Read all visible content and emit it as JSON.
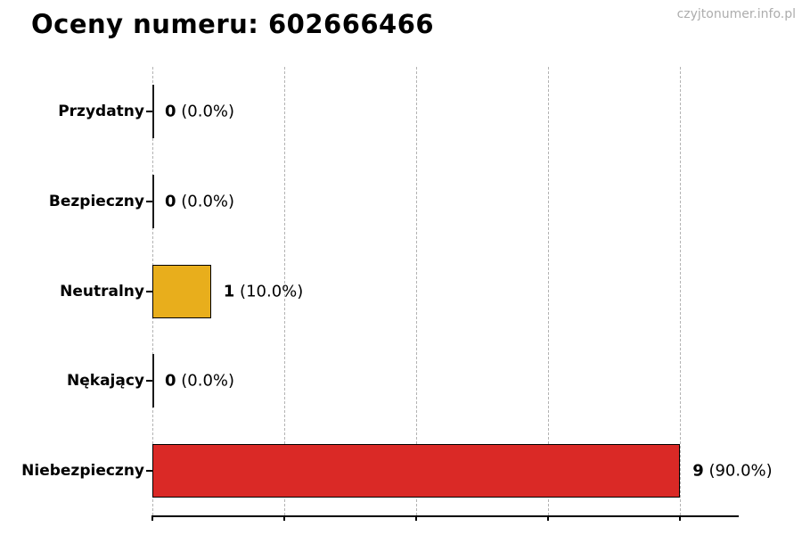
{
  "page": {
    "title": "Oceny numeru: 602666466",
    "watermark": "czyjtonumer.info.pl"
  },
  "chart_data": {
    "type": "bar",
    "orientation": "horizontal",
    "title": "Oceny numeru: 602666466",
    "categories": [
      "Przydatny",
      "Bezpieczny",
      "Neutralny",
      "Nękający",
      "Niebezpieczny"
    ],
    "values": [
      0,
      0,
      1,
      0,
      9
    ],
    "value_labels": [
      {
        "num": "0",
        "pct": "(0.0%)"
      },
      {
        "num": "0",
        "pct": "(0.0%)"
      },
      {
        "num": "1",
        "pct": "(10.0%)"
      },
      {
        "num": "0",
        "pct": "(0.0%)"
      },
      {
        "num": "9",
        "pct": "(90.0%)"
      }
    ],
    "bar_colors": [
      "#1a1a1a",
      "#1a1a1a",
      "#e8ae1c",
      "#1a1a1a",
      "#da2926"
    ],
    "bar_border_color": "#000000",
    "xlim": [
      0,
      10
    ],
    "gridline_values": [
      0,
      2.25,
      4.5,
      6.75,
      9
    ],
    "grid": "vertical-dashed",
    "legend": "none",
    "x_tick_labels": [],
    "colors": {
      "neutral_bar": "#e8ae1c",
      "dangerous_bar": "#da2926",
      "gridline": "#b3b3b3",
      "watermark_text": "#adadad",
      "text": "#000000",
      "background": "#ffffff"
    }
  }
}
